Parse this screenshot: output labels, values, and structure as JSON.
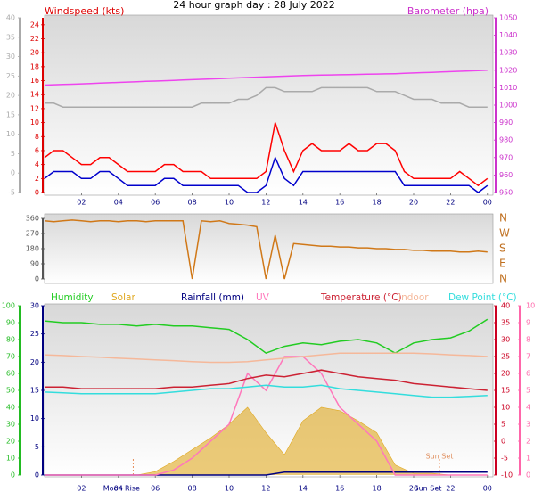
{
  "chart_data": [
    {
      "type": "line",
      "title": "24 hour graph day : 28 July 2022",
      "ylabel": "Windspeed (kts)",
      "y2label": "Barometer (hpa)",
      "x": [
        0,
        0.5,
        1,
        1.5,
        2,
        2.5,
        3,
        3.5,
        4,
        4.5,
        5,
        5.5,
        6,
        6.5,
        7,
        7.5,
        8,
        8.5,
        9,
        9.5,
        10,
        10.5,
        11,
        11.5,
        12,
        12.5,
        13,
        13.5,
        14,
        14.5,
        15,
        15.5,
        16,
        16.5,
        17,
        17.5,
        18,
        18.5,
        19,
        19.5,
        20,
        20.5,
        21,
        21.5,
        22,
        22.5,
        23,
        23.5,
        24
      ],
      "xlim": [
        0,
        24.3
      ],
      "xticks": [
        {
          "value": 2,
          "label": "02"
        },
        {
          "value": 4,
          "label": "04"
        },
        {
          "value": 6,
          "label": "06"
        },
        {
          "value": 8,
          "label": "08"
        },
        10,
        12,
        14,
        16,
        18,
        20,
        22,
        {
          "value": 24,
          "label": "00"
        }
      ],
      "ylim": [
        0,
        25
      ],
      "yticks": [
        0,
        2,
        4,
        6,
        8,
        10,
        12,
        14,
        16,
        18,
        20,
        22,
        24
      ],
      "y2lim": [
        950,
        1050
      ],
      "y2ticks": [
        950,
        960,
        970,
        980,
        990,
        1000,
        1010,
        1020,
        1030,
        1040,
        1050
      ],
      "y3lim": [
        -5,
        40
      ],
      "y3ticks": [
        -5,
        0,
        5,
        10,
        15,
        20,
        25,
        30,
        35,
        40
      ],
      "axis_colors": {
        "y": "#dd0000",
        "y2": "#cc33cc",
        "y3": "#aaaaaa"
      },
      "series": [
        {
          "color": "#aaaaaa",
          "axis": "y3",
          "values": [
            18,
            18,
            17,
            17,
            17,
            17,
            17,
            17,
            17,
            17,
            17,
            17,
            17,
            17,
            17,
            17,
            17,
            18,
            18,
            18,
            18,
            19,
            19,
            20,
            22,
            22,
            21,
            21,
            21,
            21,
            22,
            22,
            22,
            22,
            22,
            22,
            21,
            21,
            21,
            20,
            19,
            19,
            19,
            18,
            18,
            18,
            17,
            17,
            17
          ]
        },
        {
          "color": "#ee44ee",
          "axis": "y2",
          "values": [
            1011.5,
            1011.7,
            1011.9,
            1012.0,
            1012.2,
            1012.4,
            1012.6,
            1012.8,
            1013.0,
            1013.2,
            1013.4,
            1013.6,
            1013.8,
            1014.0,
            1014.2,
            1014.4,
            1014.6,
            1014.8,
            1015.0,
            1015.2,
            1015.4,
            1015.6,
            1015.8,
            1016.0,
            1016.2,
            1016.4,
            1016.6,
            1016.8,
            1017.0,
            1017.1,
            1017.2,
            1017.3,
            1017.4,
            1017.5,
            1017.6,
            1017.7,
            1017.8,
            1017.9,
            1018.0,
            1018.2,
            1018.4,
            1018.6,
            1018.8,
            1019.0,
            1019.2,
            1019.4,
            1019.6,
            1019.8,
            1020.0
          ]
        },
        {
          "color": "#ff0000",
          "values": [
            5,
            6,
            6,
            5,
            4,
            4,
            5,
            5,
            4,
            3,
            3,
            3,
            3,
            4,
            4,
            3,
            3,
            3,
            2,
            2,
            2,
            2,
            2,
            2,
            3,
            10,
            6,
            3,
            6,
            7,
            6,
            6,
            6,
            7,
            6,
            6,
            7,
            7,
            6,
            3,
            2,
            2,
            2,
            2,
            2,
            3,
            2,
            1,
            2
          ]
        },
        {
          "color": "#0000cc",
          "values": [
            2,
            3,
            3,
            3,
            2,
            2,
            3,
            3,
            2,
            1,
            1,
            1,
            1,
            2,
            2,
            1,
            1,
            1,
            1,
            1,
            1,
            1,
            0,
            0,
            1,
            5,
            2,
            1,
            3,
            3,
            3,
            3,
            3,
            3,
            3,
            3,
            3,
            3,
            3,
            1,
            1,
            1,
            1,
            1,
            1,
            1,
            1,
            0,
            1
          ]
        }
      ]
    },
    {
      "type": "line",
      "x": [
        0,
        0.5,
        1,
        1.5,
        2,
        2.5,
        3,
        3.5,
        4,
        4.5,
        5,
        5.5,
        6,
        6.5,
        7,
        7.5,
        8,
        8.5,
        9,
        9.5,
        10,
        10.5,
        11,
        11.5,
        12,
        12.5,
        13,
        13.5,
        14,
        14.5,
        15,
        15.5,
        16,
        16.5,
        17,
        17.5,
        18,
        18.5,
        19,
        19.5,
        20,
        20.5,
        21,
        21.5,
        22,
        22.5,
        23,
        23.5,
        24
      ],
      "xlim": [
        0,
        24.3
      ],
      "ylim": [
        0,
        360
      ],
      "yticks": [
        0,
        90,
        180,
        270,
        360
      ],
      "y2ticks": [
        {
          "value": 0,
          "label": "N"
        },
        {
          "value": 90,
          "label": "E"
        },
        {
          "value": 180,
          "label": "S"
        },
        {
          "value": 270,
          "label": "W"
        },
        {
          "value": 360,
          "label": "N"
        }
      ],
      "axis_colors": {
        "y": "#555555",
        "y2": "#c07020"
      },
      "series": [
        {
          "color": "#d07818",
          "values": [
            345,
            340,
            345,
            350,
            345,
            340,
            345,
            345,
            340,
            345,
            345,
            340,
            345,
            345,
            345,
            345,
            0,
            345,
            340,
            345,
            330,
            325,
            320,
            310,
            0,
            260,
            0,
            210,
            205,
            200,
            195,
            195,
            190,
            190,
            185,
            185,
            180,
            180,
            175,
            175,
            170,
            170,
            165,
            165,
            165,
            160,
            160,
            165,
            160
          ]
        }
      ]
    },
    {
      "type": "line",
      "x": [
        0,
        1,
        2,
        3,
        4,
        5,
        6,
        7,
        8,
        9,
        10,
        11,
        12,
        13,
        14,
        15,
        16,
        17,
        18,
        19,
        20,
        21,
        22,
        23,
        24
      ],
      "xlim": [
        0,
        24.3
      ],
      "xticks": [
        {
          "value": 2,
          "label": "02"
        },
        {
          "value": 4,
          "label": "04"
        },
        {
          "value": 6,
          "label": "06"
        },
        {
          "value": 8,
          "label": "08"
        },
        10,
        12,
        14,
        16,
        18,
        20,
        22,
        {
          "value": 24,
          "label": "00"
        }
      ],
      "ylim": [
        0,
        100
      ],
      "yticks": [
        0,
        10,
        20,
        30,
        40,
        50,
        60,
        70,
        80,
        90,
        100
      ],
      "y2lim": [
        -10,
        40
      ],
      "y2ticks": [
        -10,
        -5,
        0,
        5,
        10,
        15,
        20,
        25,
        30,
        35,
        40
      ],
      "y3lim": [
        0,
        30
      ],
      "y3ticks": [
        0,
        5,
        10,
        15,
        20,
        25,
        30
      ],
      "y4lim": [
        0,
        10
      ],
      "y4ticks": [
        0,
        1,
        2,
        3,
        4,
        5,
        6,
        7,
        8,
        9,
        10
      ],
      "axis_colors": {
        "y": "#22bb22",
        "y2": "#cc0022",
        "y3": "#000080",
        "y4": "#ff66aa"
      },
      "annotations": [
        {
          "text": "Moon Rise",
          "x": 4.8
        },
        {
          "text": "Sun Set",
          "x": 21.4
        },
        {
          "text": "Sun Set",
          "x": 21.4,
          "position": "inside"
        }
      ],
      "series": [
        {
          "name": "Humidity",
          "color": "#22cc22",
          "values": [
            91,
            90,
            90,
            89,
            89,
            88,
            89,
            88,
            88,
            87,
            86,
            80,
            72,
            76,
            78,
            77,
            79,
            80,
            78,
            72,
            78,
            80,
            81,
            85,
            92
          ]
        },
        {
          "name": "Solar",
          "color": "#e0a820",
          "type": "area",
          "values": [
            0,
            0,
            0,
            0,
            0,
            0,
            2,
            8,
            15,
            22,
            30,
            40,
            25,
            12,
            32,
            40,
            38,
            32,
            25,
            6,
            1,
            1,
            0,
            0,
            0
          ]
        },
        {
          "name": "Rainfall (mm)",
          "color": "#000080",
          "axis": "y3",
          "values": [
            0,
            0,
            0,
            0,
            0,
            0,
            0,
            0,
            0,
            0,
            0,
            0,
            0,
            0.5,
            0.5,
            0.5,
            0.5,
            0.5,
            0.5,
            0.5,
            0.5,
            0.5,
            0.5,
            0.5,
            0.5
          ]
        },
        {
          "name": "UV",
          "color": "#ff77bb",
          "axis": "y4",
          "values": [
            0,
            0,
            0,
            0,
            0,
            0,
            0,
            0.3,
            1,
            2,
            3,
            6,
            5,
            7,
            7,
            6,
            4,
            3,
            2,
            0,
            0,
            0,
            0,
            0,
            0
          ]
        },
        {
          "name": "Temperature (°C)",
          "color": "#cc2233",
          "axis": "y2",
          "values": [
            16,
            16,
            15.5,
            15.5,
            15.5,
            15.5,
            15.5,
            16,
            16,
            16.5,
            17,
            18.5,
            19.5,
            19,
            20,
            21,
            20,
            19,
            18.5,
            18,
            17,
            16.5,
            16,
            15.5,
            15
          ]
        },
        {
          "name": "Indoor",
          "color": "#f5b89a",
          "axis": "y2",
          "values": [
            25.5,
            25.3,
            25,
            24.8,
            24.5,
            24.3,
            24,
            23.8,
            23.5,
            23.3,
            23.3,
            23.5,
            24,
            24.5,
            25,
            25.5,
            26,
            26,
            26,
            26,
            26,
            25.8,
            25.5,
            25.3,
            25
          ]
        },
        {
          "name": "Dew Point (°C)",
          "color": "#33dddd",
          "axis": "y2",
          "values": [
            14.5,
            14.3,
            14,
            14,
            14,
            14,
            14,
            14.5,
            15,
            15.5,
            15.5,
            16,
            16.5,
            16,
            16,
            16.5,
            15.5,
            15,
            14.5,
            14,
            13.5,
            13,
            13,
            13.2,
            13.5
          ]
        }
      ]
    }
  ]
}
